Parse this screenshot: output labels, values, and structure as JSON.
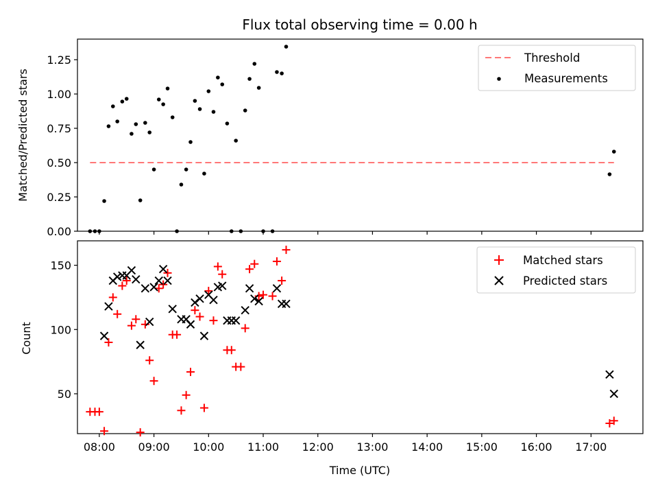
{
  "chart_data": [
    {
      "type": "scatter",
      "panel": "top",
      "title": "Flux total observing time = 0.00 h",
      "ylabel": "Matched/Predicted stars",
      "xlabel": "",
      "xlim": [
        7.6,
        17.95
      ],
      "ylim": [
        0.0,
        1.4
      ],
      "yticks": [
        0.0,
        0.25,
        0.5,
        0.75,
        1.0,
        1.25
      ],
      "ytick_labels": [
        "0.00",
        "0.25",
        "0.50",
        "0.75",
        "1.00",
        "1.25"
      ],
      "legend_position": "upper right",
      "grid": false,
      "threshold": {
        "name": "Threshold",
        "y": 0.5,
        "x_start": 7.83,
        "x_end": 17.42,
        "color": "#ff7777",
        "style": "dashed"
      },
      "series": [
        {
          "name": "Measurements",
          "marker": "dot",
          "color": "#000000",
          "points": [
            [
              7.83,
              0.0
            ],
            [
              7.92,
              0.0
            ],
            [
              8.0,
              0.0
            ],
            [
              8.09,
              0.22
            ],
            [
              8.17,
              0.765
            ],
            [
              8.25,
              0.91
            ],
            [
              8.33,
              0.8
            ],
            [
              8.42,
              0.945
            ],
            [
              8.5,
              0.965
            ],
            [
              8.59,
              0.71
            ],
            [
              8.67,
              0.78
            ],
            [
              8.75,
              0.225
            ],
            [
              8.84,
              0.79
            ],
            [
              8.92,
              0.72
            ],
            [
              9.0,
              0.45
            ],
            [
              9.09,
              0.96
            ],
            [
              9.17,
              0.925
            ],
            [
              9.25,
              1.04
            ],
            [
              9.34,
              0.83
            ],
            [
              9.42,
              0.0
            ],
            [
              9.5,
              0.34
            ],
            [
              9.59,
              0.45
            ],
            [
              9.67,
              0.65
            ],
            [
              9.75,
              0.95
            ],
            [
              9.84,
              0.89
            ],
            [
              9.92,
              0.42
            ],
            [
              10.0,
              1.02
            ],
            [
              10.09,
              0.87
            ],
            [
              10.17,
              1.12
            ],
            [
              10.25,
              1.07
            ],
            [
              10.34,
              0.785
            ],
            [
              10.42,
              0.0
            ],
            [
              10.5,
              0.66
            ],
            [
              10.59,
              0.0
            ],
            [
              10.67,
              0.88
            ],
            [
              10.75,
              1.11
            ],
            [
              10.84,
              1.22
            ],
            [
              10.92,
              1.045
            ],
            [
              11.0,
              0.0
            ],
            [
              11.17,
              0.0
            ],
            [
              11.25,
              1.16
            ],
            [
              11.34,
              1.15
            ],
            [
              11.42,
              1.345
            ],
            [
              17.34,
              0.415
            ],
            [
              17.42,
              0.58
            ]
          ]
        }
      ]
    },
    {
      "type": "scatter",
      "panel": "bottom",
      "ylabel": "Count",
      "xlabel": "Time (UTC)",
      "xlim": [
        7.6,
        17.95
      ],
      "ylim": [
        19,
        169
      ],
      "yticks": [
        50,
        100,
        150
      ],
      "ytick_labels": [
        "50",
        "100",
        "150"
      ],
      "xticks": [
        8,
        9,
        10,
        11,
        12,
        13,
        14,
        15,
        16,
        17
      ],
      "xtick_labels": [
        "08:00",
        "09:00",
        "10:00",
        "11:00",
        "12:00",
        "13:00",
        "14:00",
        "15:00",
        "16:00",
        "17:00"
      ],
      "legend_position": "upper right",
      "grid": false,
      "series": [
        {
          "name": "Matched stars",
          "marker": "plus",
          "color": "#ff0000",
          "points": [
            [
              7.83,
              36
            ],
            [
              7.92,
              36
            ],
            [
              8.0,
              36
            ],
            [
              8.09,
              21
            ],
            [
              8.17,
              90
            ],
            [
              8.25,
              125
            ],
            [
              8.33,
              112
            ],
            [
              8.42,
              134
            ],
            [
              8.5,
              138
            ],
            [
              8.59,
              103
            ],
            [
              8.67,
              108
            ],
            [
              8.75,
              20
            ],
            [
              8.84,
              104
            ],
            [
              8.92,
              76
            ],
            [
              9.0,
              60
            ],
            [
              9.09,
              132
            ],
            [
              9.17,
              135
            ],
            [
              9.25,
              144
            ],
            [
              9.34,
              96
            ],
            [
              9.42,
              96
            ],
            [
              9.5,
              37
            ],
            [
              9.59,
              49
            ],
            [
              9.67,
              67
            ],
            [
              9.75,
              115
            ],
            [
              9.84,
              110
            ],
            [
              9.92,
              39
            ],
            [
              10.0,
              130
            ],
            [
              10.09,
              107
            ],
            [
              10.17,
              149
            ],
            [
              10.25,
              143
            ],
            [
              10.34,
              84
            ],
            [
              10.42,
              84
            ],
            [
              10.5,
              71
            ],
            [
              10.59,
              71
            ],
            [
              10.67,
              101
            ],
            [
              10.75,
              147
            ],
            [
              10.84,
              151
            ],
            [
              10.92,
              126
            ],
            [
              11.0,
              127
            ],
            [
              11.17,
              126
            ],
            [
              11.25,
              153
            ],
            [
              11.34,
              138
            ],
            [
              11.42,
              162
            ],
            [
              17.34,
              27
            ],
            [
              17.42,
              29
            ]
          ]
        },
        {
          "name": "Predicted stars",
          "marker": "x",
          "color": "#000000",
          "points": [
            [
              8.09,
              95
            ],
            [
              8.17,
              118
            ],
            [
              8.25,
              138
            ],
            [
              8.33,
              141
            ],
            [
              8.42,
              142
            ],
            [
              8.5,
              142
            ],
            [
              8.59,
              146
            ],
            [
              8.67,
              139
            ],
            [
              8.75,
              88
            ],
            [
              8.84,
              132
            ],
            [
              8.92,
              106
            ],
            [
              9.0,
              133
            ],
            [
              9.09,
              138
            ],
            [
              9.17,
              147
            ],
            [
              9.25,
              138
            ],
            [
              9.34,
              116
            ],
            [
              9.5,
              108
            ],
            [
              9.59,
              108
            ],
            [
              9.67,
              104
            ],
            [
              9.75,
              121
            ],
            [
              9.84,
              124
            ],
            [
              9.92,
              95
            ],
            [
              10.0,
              127
            ],
            [
              10.09,
              123
            ],
            [
              10.17,
              133
            ],
            [
              10.25,
              134
            ],
            [
              10.34,
              107
            ],
            [
              10.42,
              107
            ],
            [
              10.5,
              107
            ],
            [
              10.67,
              115
            ],
            [
              10.75,
              132
            ],
            [
              10.84,
              124
            ],
            [
              10.92,
              122
            ],
            [
              11.25,
              132
            ],
            [
              11.34,
              120
            ],
            [
              11.42,
              120
            ],
            [
              17.34,
              65
            ],
            [
              17.42,
              50
            ]
          ]
        }
      ]
    }
  ]
}
